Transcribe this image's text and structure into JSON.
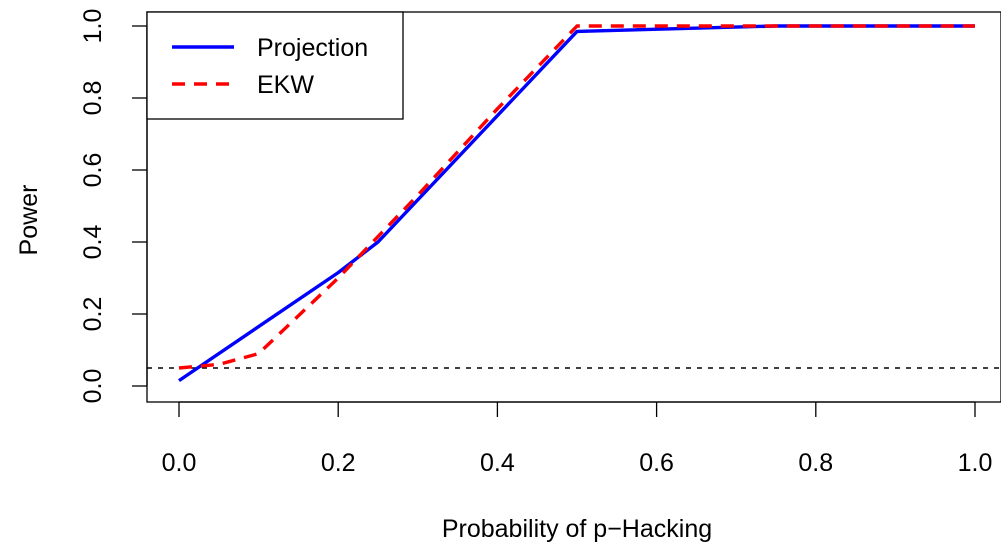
{
  "chart_data": {
    "type": "line",
    "title": "",
    "xlabel": "Probability of p−Hacking",
    "ylabel": "Power",
    "xlim": [
      0,
      1
    ],
    "ylim": [
      0,
      1
    ],
    "x_ticks": [
      "0.0",
      "0.2",
      "0.4",
      "0.6",
      "0.8",
      "1.0"
    ],
    "y_ticks": [
      "0.0",
      "0.2",
      "0.4",
      "0.6",
      "0.8",
      "1.0"
    ],
    "grid": false,
    "legend_position": "top-left",
    "reference_line": {
      "y": 0.05,
      "style": "dotted",
      "color": "#000000"
    },
    "series": [
      {
        "name": "Projection",
        "color": "#0000ff",
        "style": "solid",
        "x": [
          0,
          0.2,
          0.25,
          0.5,
          0.75,
          1.0
        ],
        "y": [
          0.015,
          0.315,
          0.4,
          0.985,
          1.0,
          1.0
        ]
      },
      {
        "name": "EKW",
        "color": "#ff0000",
        "style": "dashed",
        "x": [
          0,
          0.05,
          0.1,
          0.2,
          0.3,
          0.4,
          0.5,
          0.6,
          0.7,
          0.8,
          0.9,
          1.0
        ],
        "y": [
          0.05,
          0.06,
          0.09,
          0.3,
          0.53,
          0.77,
          1.0,
          1.0,
          1.0,
          1.0,
          1.0,
          1.0
        ]
      }
    ]
  }
}
